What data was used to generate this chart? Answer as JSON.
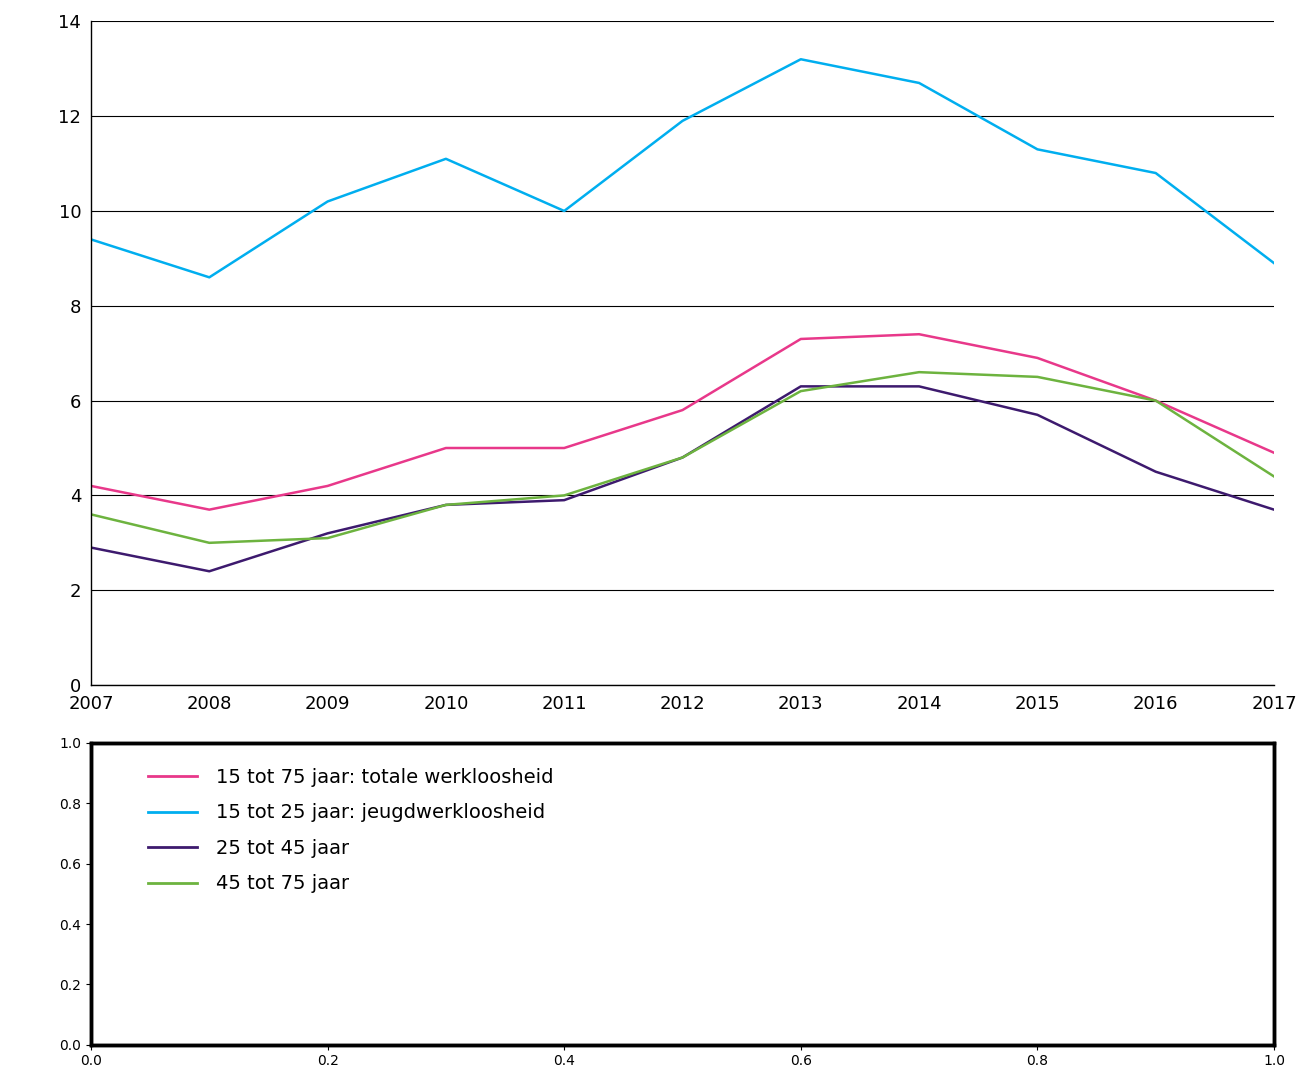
{
  "years": [
    2007,
    2008,
    2009,
    2010,
    2011,
    2012,
    2013,
    2014,
    2015,
    2016,
    2017
  ],
  "series": {
    "totaal": {
      "label": "15 tot 75 jaar: totale werkloosheid",
      "color": "#E8388A",
      "values": [
        4.2,
        3.7,
        4.2,
        5.0,
        5.0,
        5.8,
        7.3,
        7.4,
        6.9,
        6.0,
        4.9
      ]
    },
    "jeugd": {
      "label": "15 tot 25 jaar: jeugdwerkloosheid",
      "color": "#00AEEF",
      "values": [
        9.4,
        8.6,
        10.2,
        11.1,
        10.0,
        11.9,
        13.2,
        12.7,
        11.3,
        10.8,
        8.9
      ]
    },
    "mid": {
      "label": "25 tot 45 jaar",
      "color": "#3D1A6E",
      "values": [
        2.9,
        2.4,
        3.2,
        3.8,
        3.9,
        4.8,
        6.3,
        6.3,
        5.7,
        4.5,
        3.7
      ]
    },
    "oud": {
      "label": "45 tot 75 jaar",
      "color": "#6DB33F",
      "values": [
        3.6,
        3.0,
        3.1,
        3.8,
        4.0,
        4.8,
        6.2,
        6.6,
        6.5,
        6.0,
        4.4
      ]
    }
  },
  "ylim": [
    0,
    14
  ],
  "yticks": [
    0,
    2,
    4,
    6,
    8,
    10,
    12,
    14
  ],
  "background_color": "#ffffff",
  "grid_color": "#000000",
  "line_width": 1.8,
  "legend_fontsize": 14,
  "tick_fontsize": 13
}
